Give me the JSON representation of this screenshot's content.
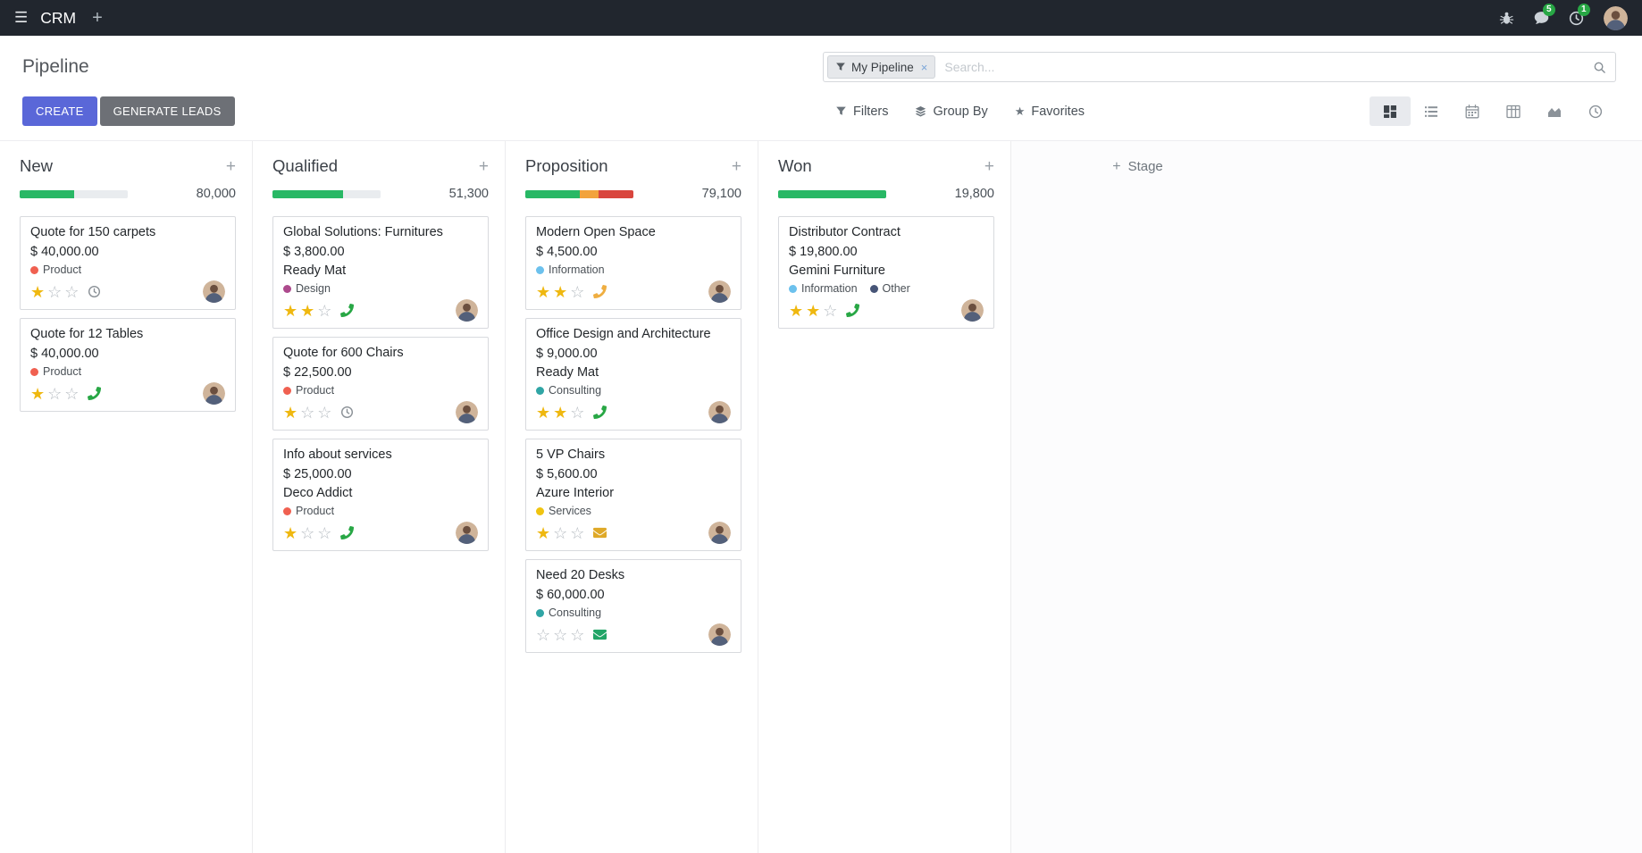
{
  "colors": {
    "primary": "#5a67d8",
    "secondary": "#6d7076",
    "navbar-bg": "#21262e",
    "green": "#28b865",
    "orange": "#f2a33c",
    "red": "#d9463e",
    "star": "#efb810",
    "badge": "#28a745"
  },
  "icons": {
    "menu": "☰",
    "plus": "+",
    "close": "×",
    "star_filled": "★",
    "star_empty": "☆"
  },
  "navbar": {
    "app_title": "CRM",
    "messages_badge": "5",
    "activities_badge": "1"
  },
  "control_panel": {
    "title": "Pipeline",
    "search": {
      "facet": "My Pipeline",
      "placeholder": "Search...",
      "value": ""
    },
    "buttons": {
      "create": "CREATE",
      "generate_leads": "GENERATE LEADS"
    },
    "filters": {
      "filters": "Filters",
      "group_by": "Group By",
      "favorites": "Favorites"
    }
  },
  "view_switcher": {
    "active": "kanban"
  },
  "board": {
    "add_stage_label": "Stage",
    "columns": [
      {
        "name": "New",
        "total": "80,000",
        "progress": [
          {
            "color": "green",
            "pct": 50
          }
        ],
        "cards": [
          {
            "title": "Quote for 150 carpets",
            "amount": "$ 40,000.00",
            "tags": [
              {
                "label": "Product",
                "color": "#f06050"
              }
            ],
            "stars": 1,
            "activity": {
              "type": "clock",
              "color": "#8a9096"
            }
          },
          {
            "title": "Quote for 12 Tables",
            "amount": "$ 40,000.00",
            "tags": [
              {
                "label": "Product",
                "color": "#f06050"
              }
            ],
            "stars": 1,
            "activity": {
              "type": "phone",
              "color": "#28a745"
            }
          }
        ]
      },
      {
        "name": "Qualified",
        "total": "51,300",
        "progress": [
          {
            "color": "green",
            "pct": 65
          }
        ],
        "cards": [
          {
            "title": "Global Solutions: Furnitures",
            "amount": "$ 3,800.00",
            "partner": "Ready Mat",
            "tags": [
              {
                "label": "Design",
                "color": "#ad4a8d"
              }
            ],
            "stars": 2,
            "activity": {
              "type": "phone",
              "color": "#28a745"
            }
          },
          {
            "title": "Quote for 600 Chairs",
            "amount": "$ 22,500.00",
            "tags": [
              {
                "label": "Product",
                "color": "#f06050"
              }
            ],
            "stars": 1,
            "activity": {
              "type": "clock",
              "color": "#8a9096"
            }
          },
          {
            "title": "Info about services",
            "amount": "$ 25,000.00",
            "partner": "Deco Addict",
            "tags": [
              {
                "label": "Product",
                "color": "#f06050"
              }
            ],
            "stars": 1,
            "activity": {
              "type": "phone",
              "color": "#28a745"
            }
          }
        ]
      },
      {
        "name": "Proposition",
        "total": "79,100",
        "progress": [
          {
            "color": "green",
            "pct": 50
          },
          {
            "color": "orange",
            "pct": 18
          },
          {
            "color": "red",
            "pct": 32
          }
        ],
        "cards": [
          {
            "title": "Modern Open Space",
            "amount": "$ 4,500.00",
            "tags": [
              {
                "label": "Information",
                "color": "#6cc1ed"
              }
            ],
            "stars": 2,
            "activity": {
              "type": "phone",
              "color": "#efae41"
            }
          },
          {
            "title": "Office Design and Architecture",
            "amount": "$ 9,000.00",
            "partner": "Ready Mat",
            "tags": [
              {
                "label": "Consulting",
                "color": "#30a5a5"
              }
            ],
            "stars": 2,
            "activity": {
              "type": "phone",
              "color": "#28a745"
            }
          },
          {
            "title": "5 VP Chairs",
            "amount": "$ 5,600.00",
            "partner": "Azure Interior",
            "tags": [
              {
                "label": "Services",
                "color": "#f0c410"
              }
            ],
            "stars": 1,
            "activity": {
              "type": "envelope",
              "color": "#dfa928"
            }
          },
          {
            "title": "Need 20 Desks",
            "amount": "$ 60,000.00",
            "tags": [
              {
                "label": "Consulting",
                "color": "#30a5a5"
              }
            ],
            "stars": 0,
            "activity": {
              "type": "envelope",
              "color": "#21a567"
            }
          }
        ]
      },
      {
        "name": "Won",
        "total": "19,800",
        "progress": [
          {
            "color": "green",
            "pct": 100
          }
        ],
        "cards": [
          {
            "title": "Distributor Contract",
            "amount": "$ 19,800.00",
            "partner": "Gemini Furniture",
            "tags": [
              {
                "label": "Information",
                "color": "#6cc1ed"
              },
              {
                "label": "Other",
                "color": "#475577"
              }
            ],
            "stars": 2,
            "activity": {
              "type": "phone",
              "color": "#28a745"
            }
          }
        ]
      }
    ]
  }
}
